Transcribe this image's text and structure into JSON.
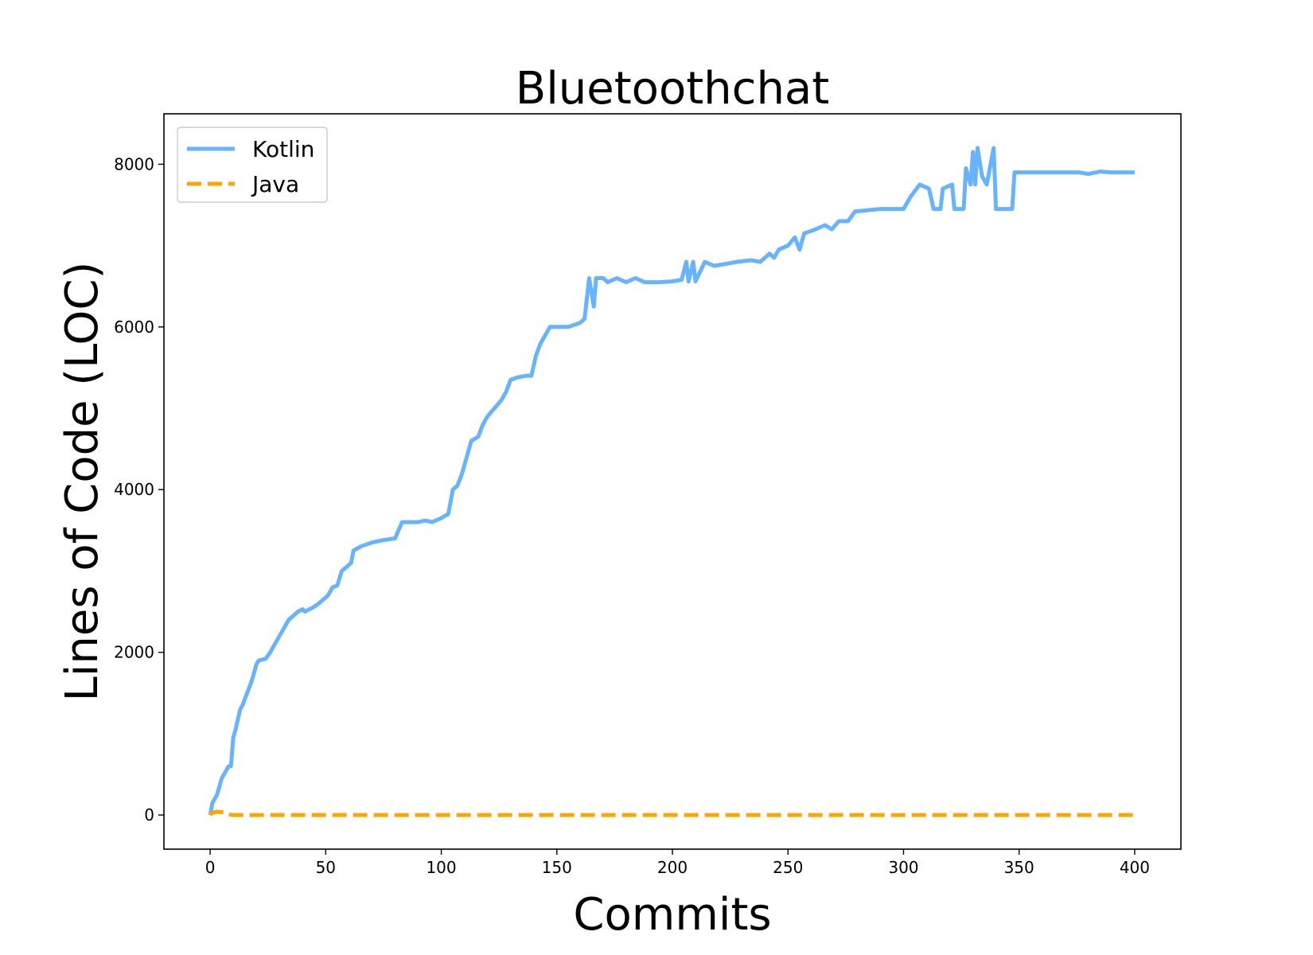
{
  "chart_data": {
    "type": "line",
    "title": "Bluetoothchat",
    "xlabel": "Commits",
    "ylabel": "Lines of Code (LOC)",
    "xlim": [
      -20,
      420
    ],
    "ylim": [
      -420,
      8620
    ],
    "xticks": [
      0,
      50,
      100,
      150,
      200,
      250,
      300,
      350,
      400
    ],
    "yticks": [
      0,
      2000,
      4000,
      6000,
      8000
    ],
    "grid": false,
    "legend_position": "top-left",
    "series": [
      {
        "name": "Kotlin",
        "color": "#66b3ff",
        "dash": "solid",
        "points": [
          [
            0,
            0
          ],
          [
            1,
            150
          ],
          [
            3,
            250
          ],
          [
            5,
            450
          ],
          [
            7,
            550
          ],
          [
            8,
            600
          ],
          [
            9,
            600
          ],
          [
            10,
            950
          ],
          [
            11,
            1050
          ],
          [
            13,
            1300
          ],
          [
            14,
            1350
          ],
          [
            16,
            1500
          ],
          [
            18,
            1650
          ],
          [
            20,
            1850
          ],
          [
            21,
            1900
          ],
          [
            24,
            1920
          ],
          [
            26,
            2000
          ],
          [
            28,
            2100
          ],
          [
            30,
            2200
          ],
          [
            32,
            2300
          ],
          [
            34,
            2400
          ],
          [
            36,
            2450
          ],
          [
            38,
            2500
          ],
          [
            40,
            2530
          ],
          [
            41,
            2500
          ],
          [
            43,
            2530
          ],
          [
            45,
            2560
          ],
          [
            47,
            2600
          ],
          [
            49,
            2650
          ],
          [
            51,
            2700
          ],
          [
            53,
            2800
          ],
          [
            55,
            2820
          ],
          [
            57,
            3000
          ],
          [
            59,
            3050
          ],
          [
            61,
            3100
          ],
          [
            62,
            3250
          ],
          [
            65,
            3300
          ],
          [
            68,
            3330
          ],
          [
            70,
            3350
          ],
          [
            75,
            3380
          ],
          [
            80,
            3400
          ],
          [
            83,
            3600
          ],
          [
            90,
            3600
          ],
          [
            93,
            3620
          ],
          [
            96,
            3600
          ],
          [
            100,
            3650
          ],
          [
            103,
            3700
          ],
          [
            105,
            4000
          ],
          [
            107,
            4050
          ],
          [
            109,
            4200
          ],
          [
            111,
            4400
          ],
          [
            113,
            4600
          ],
          [
            116,
            4650
          ],
          [
            118,
            4800
          ],
          [
            120,
            4900
          ],
          [
            123,
            5000
          ],
          [
            126,
            5100
          ],
          [
            128,
            5200
          ],
          [
            130,
            5350
          ],
          [
            133,
            5380
          ],
          [
            137,
            5400
          ],
          [
            139,
            5400
          ],
          [
            141,
            5650
          ],
          [
            143,
            5800
          ],
          [
            145,
            5900
          ],
          [
            147,
            6000
          ],
          [
            155,
            6000
          ],
          [
            160,
            6050
          ],
          [
            162,
            6100
          ],
          [
            164,
            6600
          ],
          [
            166,
            6250
          ],
          [
            167,
            6600
          ],
          [
            170,
            6600
          ],
          [
            172,
            6550
          ],
          [
            176,
            6600
          ],
          [
            180,
            6550
          ],
          [
            184,
            6600
          ],
          [
            188,
            6550
          ],
          [
            194,
            6550
          ],
          [
            200,
            6560
          ],
          [
            204,
            6580
          ],
          [
            206,
            6800
          ],
          [
            207,
            6560
          ],
          [
            209,
            6800
          ],
          [
            210,
            6560
          ],
          [
            214,
            6800
          ],
          [
            218,
            6750
          ],
          [
            224,
            6780
          ],
          [
            228,
            6800
          ],
          [
            234,
            6820
          ],
          [
            238,
            6800
          ],
          [
            242,
            6900
          ],
          [
            244,
            6850
          ],
          [
            246,
            6950
          ],
          [
            250,
            7000
          ],
          [
            253,
            7100
          ],
          [
            255,
            6950
          ],
          [
            257,
            7150
          ],
          [
            262,
            7200
          ],
          [
            266,
            7250
          ],
          [
            269,
            7200
          ],
          [
            272,
            7300
          ],
          [
            276,
            7300
          ],
          [
            279,
            7420
          ],
          [
            290,
            7450
          ],
          [
            300,
            7450
          ],
          [
            303,
            7600
          ],
          [
            307,
            7750
          ],
          [
            311,
            7700
          ],
          [
            313,
            7450
          ],
          [
            316,
            7450
          ],
          [
            317,
            7700
          ],
          [
            321,
            7750
          ],
          [
            322,
            7450
          ],
          [
            326,
            7450
          ],
          [
            327,
            7950
          ],
          [
            329,
            7750
          ],
          [
            330,
            8150
          ],
          [
            331,
            7750
          ],
          [
            332,
            8200
          ],
          [
            334,
            7850
          ],
          [
            336,
            7750
          ],
          [
            337,
            7900
          ],
          [
            339,
            8200
          ],
          [
            340,
            7450
          ],
          [
            347,
            7450
          ],
          [
            348,
            7900
          ],
          [
            360,
            7900
          ],
          [
            376,
            7900
          ],
          [
            380,
            7880
          ],
          [
            385,
            7910
          ],
          [
            390,
            7900
          ],
          [
            400,
            7900
          ]
        ]
      },
      {
        "name": "Java",
        "color": "#ffa500",
        "dash": "dashed",
        "points": [
          [
            0,
            0
          ],
          [
            1,
            30
          ],
          [
            3,
            40
          ],
          [
            5,
            35
          ],
          [
            7,
            30
          ],
          [
            8,
            5
          ],
          [
            10,
            0
          ],
          [
            400,
            0
          ]
        ]
      }
    ]
  }
}
